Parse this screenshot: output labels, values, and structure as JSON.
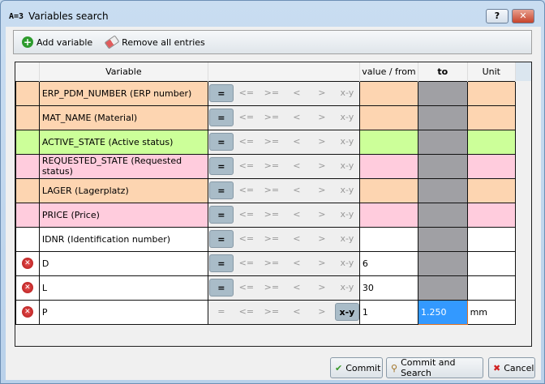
{
  "window": {
    "logo": "A=3",
    "title": "Variables search",
    "help": "?",
    "close": "✕"
  },
  "toolbar": {
    "add": "Add variable",
    "remove": "Remove all entries"
  },
  "columns": {
    "variable": "Variable",
    "from": "value / from",
    "to": "to",
    "unit": "Unit"
  },
  "operators": [
    "=",
    "<=",
    ">=",
    "<",
    ">",
    "x-y"
  ],
  "colors": {
    "orange": "#fdd5b1",
    "green": "#ccff99",
    "pink": "#ffccdd",
    "white": "#ffffff",
    "disabled": "#a0a0a4",
    "selected": "#3399ff"
  },
  "rows": [
    {
      "name": "ERP_PDM_NUMBER (ERP number)",
      "color": "orange",
      "op": 0,
      "from": "",
      "to": "",
      "unit": "",
      "del": false
    },
    {
      "name": "MAT_NAME (Material)",
      "color": "orange",
      "op": 0,
      "from": "",
      "to": "",
      "unit": "",
      "del": false
    },
    {
      "name": "ACTIVE_STATE (Active status)",
      "color": "green",
      "op": 0,
      "from": "",
      "to": "",
      "unit": "",
      "del": false
    },
    {
      "name": "REQUESTED_STATE (Requested status)",
      "color": "pink",
      "op": 0,
      "from": "",
      "to": "",
      "unit": "",
      "del": false
    },
    {
      "name": "LAGER (Lagerplatz)",
      "color": "orange",
      "op": 0,
      "from": "",
      "to": "",
      "unit": "",
      "del": false
    },
    {
      "name": "PRICE (Price)",
      "color": "pink",
      "op": 0,
      "from": "",
      "to": "",
      "unit": "",
      "del": false
    },
    {
      "name": "IDNR (Identification number)",
      "color": "white",
      "op": 0,
      "from": "",
      "to": "",
      "unit": "",
      "del": false
    },
    {
      "name": "D",
      "color": "white",
      "op": 0,
      "from": "6",
      "to": "",
      "unit": "",
      "del": true
    },
    {
      "name": "L",
      "color": "white",
      "op": 0,
      "from": "30",
      "to": "",
      "unit": "",
      "del": true
    },
    {
      "name": "P",
      "color": "white",
      "op": 5,
      "from": "1",
      "to": "1.250",
      "unit": "mm",
      "del": true
    }
  ],
  "buttons": {
    "commit": "Commit",
    "commit_search": "Commit and Search",
    "cancel": "Cancel"
  }
}
